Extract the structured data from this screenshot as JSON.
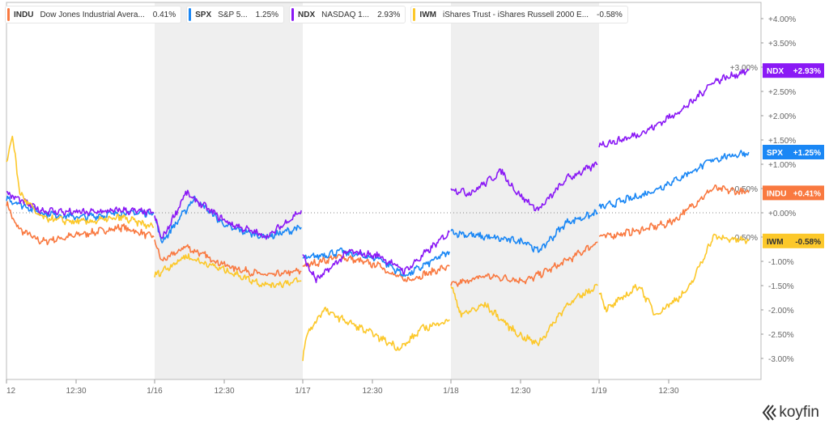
{
  "legend": [
    {
      "ticker": "INDU",
      "name": "Dow Jones Industrial Avera...",
      "change": "0.41%",
      "color": "#f97940"
    },
    {
      "ticker": "SPX",
      "name": "S&P 5...",
      "change": "1.25%",
      "color": "#1a87f5"
    },
    {
      "ticker": "NDX",
      "name": "NASDAQ 1...",
      "change": "2.93%",
      "color": "#8a19f5"
    },
    {
      "ticker": "IWM",
      "name": "iShares Trust - iShares Russell 2000 E...",
      "change": "-0.58%",
      "color": "#fcc82a"
    }
  ],
  "brand": "koyfin",
  "chart_data": {
    "type": "line",
    "title": "",
    "xlabel": "",
    "ylabel": "",
    "x_unit": "trading days from start (1/12 midday = 0)",
    "x_ticks": [
      {
        "x": 0,
        "label": "12"
      },
      {
        "x": 0.47,
        "label": "12:30"
      },
      {
        "x": 1,
        "label": "1/16"
      },
      {
        "x": 1.47,
        "label": "12:30"
      },
      {
        "x": 2,
        "label": "1/17"
      },
      {
        "x": 2.47,
        "label": "12:30"
      },
      {
        "x": 3,
        "label": "1/18"
      },
      {
        "x": 3.47,
        "label": "12:30"
      },
      {
        "x": 4,
        "label": "1/19"
      },
      {
        "x": 4.47,
        "label": "12:30"
      }
    ],
    "xlim": [
      0,
      5.1
    ],
    "ylim": [
      -3.5,
      4.3
    ],
    "y_ticks": [
      "+4.00%",
      "+3.50%",
      "+3.00%",
      "+2.50%",
      "+2.00%",
      "+1.50%",
      "+1.00%",
      "+0.50%",
      "+0.00%",
      "-0.50%",
      "-1.00%",
      "-1.50%",
      "-2.00%",
      "-2.50%",
      "-3.00%"
    ],
    "y_tick_values": [
      4,
      3.5,
      3,
      2.5,
      2,
      1.5,
      1,
      0.5,
      0,
      -0.5,
      -1,
      -1.5,
      -2,
      -2.5,
      -3
    ],
    "shaded_days": [
      [
        1,
        2
      ],
      [
        3,
        4
      ]
    ],
    "zero_line": true,
    "series": [
      {
        "name": "INDU",
        "color": "#f97940",
        "last_label": "+0.41%",
        "last": 0.41,
        "segments": [
          [
            [
              0,
              0.2
            ],
            [
              0.07,
              -0.3
            ],
            [
              0.23,
              -0.6
            ],
            [
              0.5,
              -0.45
            ],
            [
              0.78,
              -0.3
            ],
            [
              0.995,
              -0.5
            ]
          ],
          [
            [
              1,
              -0.6
            ],
            [
              1.05,
              -1.0
            ],
            [
              1.21,
              -0.7
            ],
            [
              1.49,
              -1.1
            ],
            [
              1.76,
              -1.3
            ],
            [
              1.99,
              -1.2
            ]
          ],
          [
            [
              2,
              -1.1
            ],
            [
              2.25,
              -0.9
            ],
            [
              2.52,
              -1.1
            ],
            [
              2.69,
              -1.4
            ],
            [
              2.99,
              -1.1
            ]
          ],
          [
            [
              3,
              -1.5
            ],
            [
              3.23,
              -1.3
            ],
            [
              3.51,
              -1.4
            ],
            [
              3.78,
              -1.0
            ],
            [
              3.99,
              -0.6
            ]
          ],
          [
            [
              4,
              -0.5
            ],
            [
              4.22,
              -0.4
            ],
            [
              4.49,
              -0.2
            ],
            [
              4.77,
              0.5
            ],
            [
              5.01,
              0.41
            ]
          ]
        ]
      },
      {
        "name": "SPX",
        "color": "#1a87f5",
        "last_label": "+1.25%",
        "last": 1.25,
        "segments": [
          [
            [
              0,
              0.3
            ],
            [
              0.23,
              0.0
            ],
            [
              0.5,
              -0.1
            ],
            [
              0.78,
              0.0
            ],
            [
              0.995,
              0.0
            ]
          ],
          [
            [
              1,
              -0.1
            ],
            [
              1.05,
              -0.6
            ],
            [
              1.27,
              0.3
            ],
            [
              1.49,
              -0.3
            ],
            [
              1.76,
              -0.5
            ],
            [
              1.99,
              -0.3
            ]
          ],
          [
            [
              2,
              -0.95
            ],
            [
              2.25,
              -0.8
            ],
            [
              2.52,
              -0.95
            ],
            [
              2.69,
              -1.3
            ],
            [
              2.99,
              -0.8
            ]
          ],
          [
            [
              3,
              -0.4
            ],
            [
              3.23,
              -0.5
            ],
            [
              3.51,
              -0.6
            ],
            [
              3.59,
              -0.8
            ],
            [
              3.78,
              -0.2
            ],
            [
              3.99,
              0.0
            ]
          ],
          [
            [
              4,
              0.1
            ],
            [
              4.33,
              0.4
            ],
            [
              4.6,
              0.8
            ],
            [
              4.77,
              1.1
            ],
            [
              5.01,
              1.25
            ]
          ]
        ]
      },
      {
        "name": "NDX",
        "color": "#8a19f5",
        "last_label": "+2.93%",
        "last": 2.93,
        "segments": [
          [
            [
              0,
              0.4
            ],
            [
              0.23,
              0.05
            ],
            [
              0.5,
              0.0
            ],
            [
              0.78,
              0.05
            ],
            [
              0.995,
              0.0
            ]
          ],
          [
            [
              1,
              -0.1
            ],
            [
              1.05,
              -0.55
            ],
            [
              1.21,
              0.4
            ],
            [
              1.49,
              -0.2
            ],
            [
              1.76,
              -0.5
            ],
            [
              1.99,
              0.05
            ]
          ],
          [
            [
              2,
              -0.9
            ],
            [
              2.09,
              -1.4
            ],
            [
              2.31,
              -0.8
            ],
            [
              2.52,
              -0.9
            ],
            [
              2.69,
              -1.2
            ],
            [
              2.99,
              -0.4
            ]
          ],
          [
            [
              3,
              0.5
            ],
            [
              3.13,
              0.4
            ],
            [
              3.34,
              0.85
            ],
            [
              3.45,
              0.4
            ],
            [
              3.59,
              0.05
            ],
            [
              3.78,
              0.7
            ],
            [
              3.99,
              1.0
            ]
          ],
          [
            [
              4,
              1.4
            ],
            [
              4.16,
              1.5
            ],
            [
              4.33,
              1.7
            ],
            [
              4.6,
              2.2
            ],
            [
              4.77,
              2.7
            ],
            [
              5.01,
              2.93
            ]
          ]
        ]
      },
      {
        "name": "IWM",
        "color": "#fcc82a",
        "last_label": "-0.58%",
        "last": -0.58,
        "segments": [
          [
            [
              0,
              1.0
            ],
            [
              0.04,
              1.6
            ],
            [
              0.09,
              0.4
            ],
            [
              0.23,
              -0.1
            ],
            [
              0.5,
              -0.2
            ],
            [
              0.78,
              -0.1
            ],
            [
              0.995,
              -0.3
            ]
          ],
          [
            [
              1,
              -1.3
            ],
            [
              1.05,
              -1.2
            ],
            [
              1.21,
              -0.9
            ],
            [
              1.49,
              -1.2
            ],
            [
              1.76,
              -1.5
            ],
            [
              1.99,
              -1.4
            ]
          ],
          [
            [
              2,
              -3.0
            ],
            [
              2.03,
              -2.5
            ],
            [
              2.14,
              -2.0
            ],
            [
              2.47,
              -2.5
            ],
            [
              2.66,
              -2.8
            ],
            [
              2.8,
              -2.4
            ],
            [
              2.99,
              -2.2
            ]
          ],
          [
            [
              3,
              -1.5
            ],
            [
              3.07,
              -2.1
            ],
            [
              3.23,
              -1.9
            ],
            [
              3.45,
              -2.5
            ],
            [
              3.59,
              -2.7
            ],
            [
              3.78,
              -1.9
            ],
            [
              3.99,
              -1.5
            ]
          ],
          [
            [
              4,
              -1.6
            ],
            [
              4.05,
              -2.0
            ],
            [
              4.27,
              -1.5
            ],
            [
              4.38,
              -2.1
            ],
            [
              4.6,
              -1.6
            ],
            [
              4.77,
              -0.5
            ],
            [
              5.01,
              -0.58
            ]
          ]
        ]
      }
    ]
  }
}
